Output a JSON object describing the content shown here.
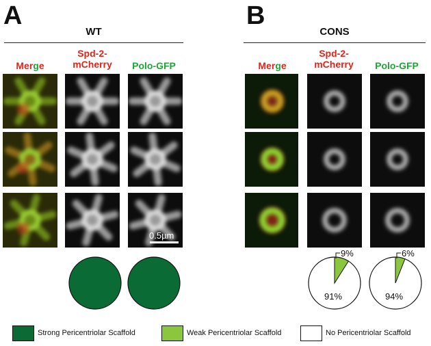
{
  "panels": [
    {
      "letter": "A",
      "title": "WT",
      "columns": [
        "Merge",
        "Spd-2-\nmCherry",
        "Polo-GFP"
      ],
      "pies": [
        {
          "strong": 1.0,
          "weak": 0,
          "none": 0
        },
        {
          "strong": 1.0,
          "weak": 0,
          "none": 0
        }
      ]
    },
    {
      "letter": "B",
      "title": "CONS",
      "columns": [
        "Merge",
        "Spd-2-\nmCherry",
        "Polo-GFP"
      ],
      "pies": [
        {
          "weak": 0.09,
          "none": 0.91,
          "weak_label": "9%",
          "none_label": "91%"
        },
        {
          "weak": 0.06,
          "none": 0.94,
          "weak_label": "6%",
          "none_label": "94%"
        }
      ]
    }
  ],
  "merge_letters": [
    {
      "ch": "M",
      "color": "#e2231a"
    },
    {
      "ch": "e",
      "color": "#e2231a"
    },
    {
      "ch": "r",
      "color": "#e2231a"
    },
    {
      "ch": "g",
      "color": "#22a33a"
    },
    {
      "ch": "e",
      "color": "#e2231a"
    }
  ],
  "spd2_line1": "Spd-2-",
  "spd2_line2": "mCherry",
  "polo_label": "Polo-GFP",
  "scale_bar": "0.5µm",
  "legend": [
    {
      "label": "Strong Pericentriolar Scaffold",
      "color": "#0a6b35"
    },
    {
      "label": "Weak Pericentriolar Scaffold",
      "color": "#8cc63f"
    },
    {
      "label": "No Pericentriolar Scaffold",
      "color": "#ffffff"
    }
  ],
  "colors": {
    "red": "#e2231a",
    "green": "#22a33a",
    "strong": "#0a6b35",
    "weak": "#8cc63f"
  }
}
